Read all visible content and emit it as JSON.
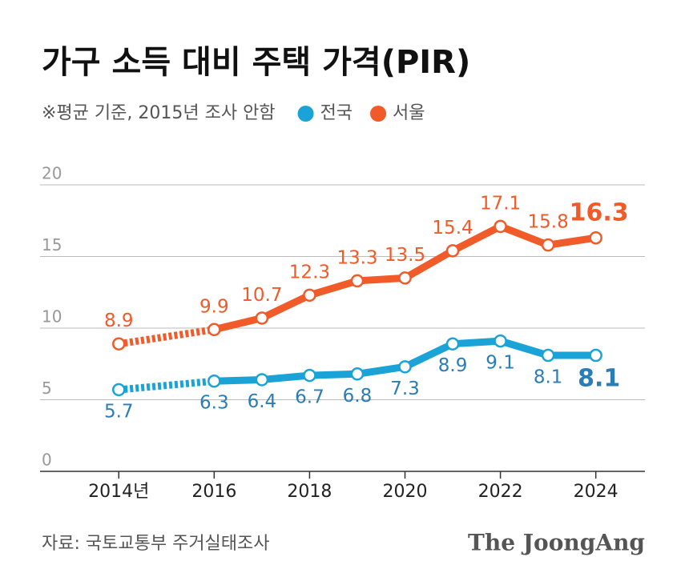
{
  "chart_data": {
    "type": "line",
    "title": "가구 소득 대비 주택 가격(PIR)",
    "subtitle": "※평균 기준, 2015년 조사 안함",
    "source": "자료: 국토교통부 주거실태조사",
    "brand": "The JoongAng",
    "x": [
      2014,
      2016,
      2017,
      2018,
      2019,
      2020,
      2021,
      2022,
      2023,
      2024
    ],
    "series": [
      {
        "name": "전국",
        "color": "#1aa3d6",
        "label_color": "#2b7db5",
        "values": [
          5.7,
          6.3,
          6.4,
          6.7,
          6.8,
          7.3,
          8.9,
          9.1,
          8.1,
          8.1
        ]
      },
      {
        "name": "서울",
        "color": "#f15a29",
        "label_color": "#f15a29",
        "values": [
          8.9,
          9.9,
          10.7,
          12.3,
          13.3,
          13.5,
          15.4,
          17.1,
          15.8,
          16.3
        ]
      }
    ],
    "xlim": [
      2012.35,
      2025.03
    ],
    "xticks": [
      {
        "value": 2014,
        "label": "2014년"
      },
      2016,
      2018,
      2020,
      2022,
      2024
    ],
    "ylim": [
      0,
      20
    ],
    "yticks": [
      0,
      5,
      10,
      15,
      20
    ],
    "grid": true
  }
}
